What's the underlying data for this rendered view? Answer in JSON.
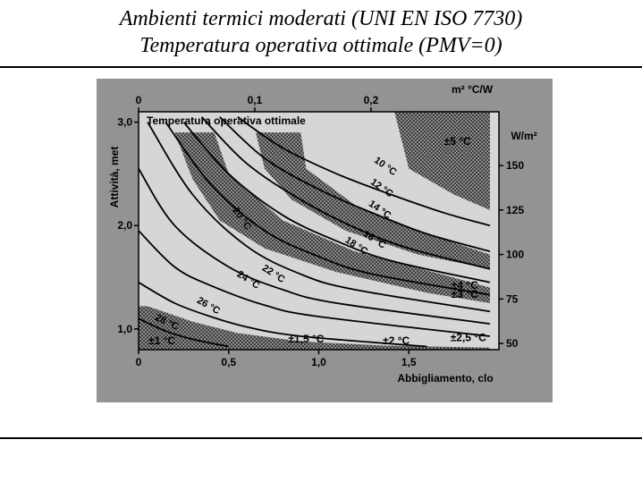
{
  "slide": {
    "title_line1": "Ambienti termici moderati (UNI EN ISO 7730)",
    "title_line2": "Temperatura operativa ottimale (PMV=0)"
  },
  "colors": {
    "panel": "#939393",
    "plot_bg": "#d6d6d6",
    "ink": "#000000",
    "hatch": "#5a5a5a"
  },
  "chart_data": {
    "type": "line",
    "title": "Temperatura operativa ottimale",
    "xlabel": "Abbigliamento, clo",
    "ylabel": "Attività, met",
    "x_secondary_label": "m² °C/W",
    "y_secondary_label": "W/m²",
    "xlim": [
      0,
      2.0
    ],
    "ylim": [
      0.8,
      3.1
    ],
    "x_ticks": [
      "0",
      "0,5",
      "1,0",
      "1,5"
    ],
    "y_ticks": [
      "1,0",
      "2,0",
      "3,0"
    ],
    "x_secondary_ticks": [
      "0",
      "0,1",
      "0,2"
    ],
    "y_secondary_ticks": [
      "50",
      "75",
      "100",
      "125",
      "150"
    ],
    "grid": false,
    "series": [
      {
        "name": "10 °C",
        "x": [
          0.55,
          0.8,
          1.1,
          1.4,
          1.7,
          1.95
        ],
        "y": [
          3.05,
          2.75,
          2.5,
          2.3,
          2.12,
          2.0
        ]
      },
      {
        "name": "12 °C",
        "x": [
          0.45,
          0.7,
          1.0,
          1.3,
          1.6,
          1.95
        ],
        "y": [
          3.05,
          2.65,
          2.35,
          2.12,
          1.92,
          1.75
        ]
      },
      {
        "name": "14 °C",
        "x": [
          0.35,
          0.6,
          0.9,
          1.2,
          1.5,
          1.95
        ],
        "y": [
          3.05,
          2.6,
          2.25,
          1.98,
          1.78,
          1.58
        ]
      },
      {
        "name": "16 °C",
        "x": [
          0.25,
          0.5,
          0.8,
          1.1,
          1.4,
          1.95
        ],
        "y": [
          3.0,
          2.5,
          2.1,
          1.85,
          1.66,
          1.45
        ]
      },
      {
        "name": "18 °C",
        "x": [
          0.15,
          0.4,
          0.7,
          1.0,
          1.3,
          1.95
        ],
        "y": [
          3.0,
          2.4,
          1.95,
          1.7,
          1.53,
          1.33
        ]
      },
      {
        "name": "20 °C",
        "x": [
          0.05,
          0.3,
          0.6,
          0.9,
          1.2,
          1.95
        ],
        "y": [
          3.0,
          2.3,
          1.8,
          1.53,
          1.38,
          1.17
        ]
      },
      {
        "name": "22 °C",
        "x": [
          0.0,
          0.2,
          0.5,
          0.8,
          1.1,
          1.95
        ],
        "y": [
          2.55,
          2.0,
          1.6,
          1.38,
          1.25,
          1.05
        ]
      },
      {
        "name": "24 °C",
        "x": [
          0.0,
          0.2,
          0.4,
          0.7,
          1.0,
          1.95
        ],
        "y": [
          1.95,
          1.6,
          1.42,
          1.23,
          1.12,
          0.93
        ]
      },
      {
        "name": "26 °C",
        "x": [
          0.0,
          0.2,
          0.4,
          0.6,
          0.9,
          1.6
        ],
        "y": [
          1.45,
          1.25,
          1.12,
          1.02,
          0.93,
          0.83
        ]
      },
      {
        "name": "28 °C",
        "x": [
          0.0,
          0.15,
          0.3,
          0.5
        ],
        "y": [
          1.1,
          0.98,
          0.9,
          0.83
        ]
      }
    ],
    "tolerance_labels": [
      "±5 °C",
      "±4 °C",
      "±3 °C",
      "±2,5 °C",
      "±2 °C",
      "±1,5 °C",
      "±1 °C"
    ],
    "curve_labels": [
      "10 °C",
      "12 °C",
      "14 °C",
      "16 °C",
      "18 °C",
      "20 °C",
      "22 °C",
      "24 °C",
      "26 °C",
      "28 °C"
    ]
  }
}
